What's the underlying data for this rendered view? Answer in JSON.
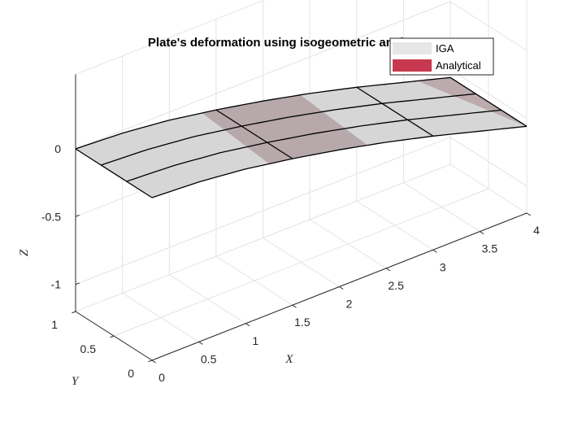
{
  "chart_data": {
    "type": "surface",
    "title": "Plate's deformation using isogeometric analyst",
    "xlabel": "X",
    "ylabel": "Y",
    "zlabel": "Z",
    "xlim": [
      0,
      4
    ],
    "ylim": [
      0,
      1
    ],
    "zlim": [
      -1.2,
      0
    ],
    "xticks": [
      "0",
      "0.5",
      "1",
      "1.5",
      "2",
      "2.5",
      "3",
      "3.5",
      "4"
    ],
    "yticks": [
      "0",
      "0.5",
      "1"
    ],
    "zticks": [
      "0",
      "-0.5",
      "-1"
    ],
    "grid": true,
    "legend_position": "top-right",
    "deflection_profile": {
      "x": [
        0,
        0.5,
        1,
        1.5,
        2,
        2.5,
        3,
        3.5,
        4
      ],
      "z": [
        0,
        -0.02,
        -0.06,
        -0.12,
        -0.19,
        -0.27,
        -0.36,
        -0.46,
        -0.56
      ]
    },
    "iga_knot_lines_x": [
      0,
      1.5,
      3,
      4
    ],
    "iga_knot_lines_y": [
      0,
      0.333,
      0.667,
      1
    ],
    "series": [
      {
        "name": "IGA",
        "color": "#e6e6e6",
        "edge_color": "#000000"
      },
      {
        "name": "Analytical",
        "color": "#c8394f"
      }
    ]
  }
}
